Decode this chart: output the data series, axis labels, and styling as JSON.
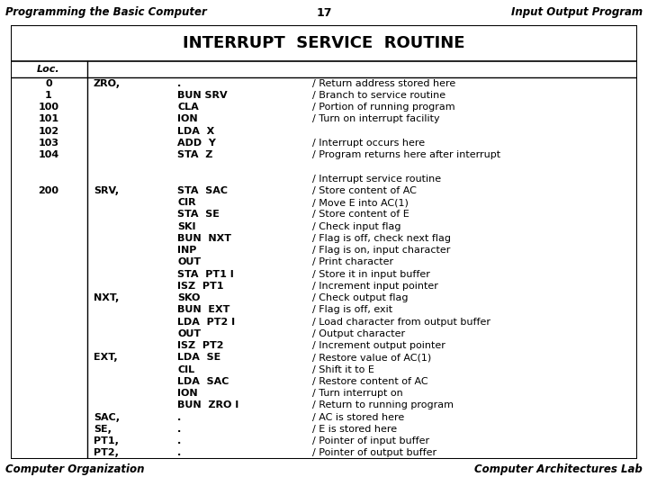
{
  "header_left": "Programming the Basic Computer",
  "header_center": "17",
  "header_right": "Input Output Program",
  "title": "INTERRUPT  SERVICE  ROUTINE",
  "footer_left": "Computer Organization",
  "footer_right": "Computer Architectures Lab",
  "table_rows": [
    {
      "loc": "Loc.",
      "label": "",
      "instruction": "",
      "comment": "",
      "is_header": true
    },
    {
      "loc": "0",
      "label": "ZRO,",
      "instruction": ".",
      "comment": "/ Return address stored here"
    },
    {
      "loc": "1",
      "label": "",
      "instruction": "BUN SRV",
      "comment": "/ Branch to service routine"
    },
    {
      "loc": "100",
      "label": "",
      "instruction": "CLA",
      "comment": "/ Portion of running program"
    },
    {
      "loc": "101",
      "label": "",
      "instruction": "ION",
      "comment": "/ Turn on interrupt facility"
    },
    {
      "loc": "102",
      "label": "",
      "instruction": "LDA  X",
      "comment": ""
    },
    {
      "loc": "103",
      "label": "",
      "instruction": "ADD  Y",
      "comment": "/ Interrupt occurs here"
    },
    {
      "loc": "104",
      "label": "",
      "instruction": "STA  Z",
      "comment": "/ Program returns here after interrupt"
    },
    {
      "loc": "",
      "label": "",
      "instruction": "",
      "comment": ""
    },
    {
      "loc": "",
      "label": "",
      "instruction": "",
      "comment": "/ Interrupt service routine"
    },
    {
      "loc": "200",
      "label": "SRV,",
      "instruction": "STA  SAC",
      "comment": "/ Store content of AC"
    },
    {
      "loc": "",
      "label": "",
      "instruction": "CIR",
      "comment": "/ Move E into AC(1)"
    },
    {
      "loc": "",
      "label": "",
      "instruction": "STA  SE",
      "comment": "/ Store content of E"
    },
    {
      "loc": "",
      "label": "",
      "instruction": "SKI",
      "comment": "/ Check input flag"
    },
    {
      "loc": "",
      "label": "",
      "instruction": "BUN  NXT",
      "comment": "/ Flag is off, check next flag"
    },
    {
      "loc": "",
      "label": "",
      "instruction": "INP",
      "comment": "/ Flag is on, input character"
    },
    {
      "loc": "",
      "label": "",
      "instruction": "OUT",
      "comment": "/ Print character"
    },
    {
      "loc": "",
      "label": "",
      "instruction": "STA  PT1 I",
      "comment": "/ Store it in input buffer"
    },
    {
      "loc": "",
      "label": "",
      "instruction": "ISZ  PT1",
      "comment": "/ Increment input pointer"
    },
    {
      "loc": "",
      "label": "NXT,",
      "instruction": "SKO",
      "comment": "/ Check output flag"
    },
    {
      "loc": "",
      "label": "",
      "instruction": "BUN  EXT",
      "comment": "/ Flag is off, exit"
    },
    {
      "loc": "",
      "label": "",
      "instruction": "LDA  PT2 I",
      "comment": "/ Load character from output buffer"
    },
    {
      "loc": "",
      "label": "",
      "instruction": "OUT",
      "comment": "/ Output character"
    },
    {
      "loc": "",
      "label": "",
      "instruction": "ISZ  PT2",
      "comment": "/ Increment output pointer"
    },
    {
      "loc": "",
      "label": "EXT,",
      "instruction": "LDA  SE",
      "comment": "/ Restore value of AC(1)"
    },
    {
      "loc": "",
      "label": "",
      "instruction": "CIL",
      "comment": "/ Shift it to E"
    },
    {
      "loc": "",
      "label": "",
      "instruction": "LDA  SAC",
      "comment": "/ Restore content of AC"
    },
    {
      "loc": "",
      "label": "",
      "instruction": "ION",
      "comment": "/ Turn interrupt on"
    },
    {
      "loc": "",
      "label": "",
      "instruction": "BUN  ZRO I",
      "comment": "/ Return to running program"
    },
    {
      "loc": "",
      "label": "SAC,",
      "instruction": ".",
      "comment": "/ AC is stored here"
    },
    {
      "loc": "",
      "label": "SE,",
      "instruction": ".",
      "comment": "/ E is stored here"
    },
    {
      "loc": "",
      "label": "PT1,",
      "instruction": ".",
      "comment": "/ Pointer of input buffer"
    },
    {
      "loc": "",
      "label": "PT2,",
      "instruction": ".",
      "comment": "/ Pointer of output buffer"
    }
  ]
}
